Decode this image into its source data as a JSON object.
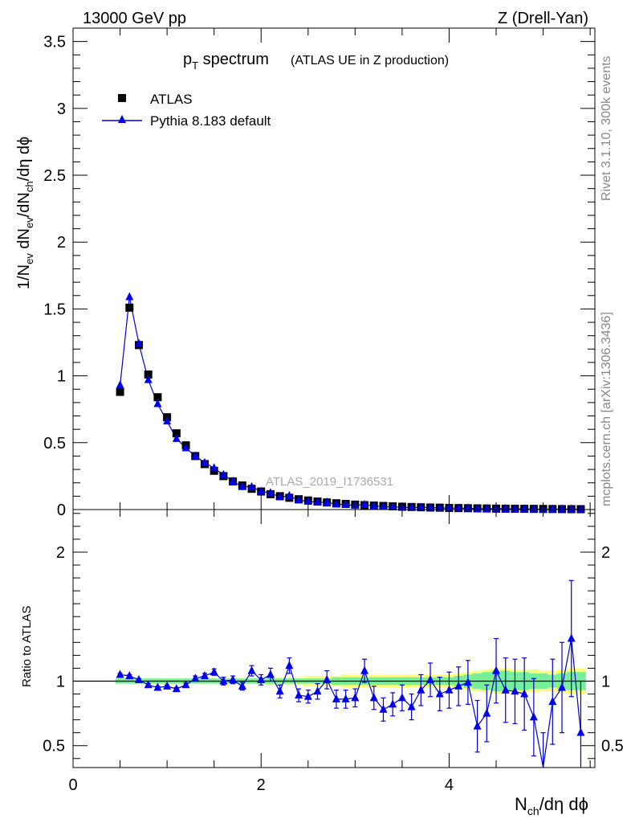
{
  "header": {
    "left": "13000 GeV pp",
    "right": "Z (Drell-Yan)"
  },
  "side_labels": {
    "rivet": "Rivet 3.1.10,  300k events",
    "mcplots": "mcplots.cern.ch [arXiv:1306.3436]"
  },
  "watermark": "ATLAS_2019_I1736531",
  "chart_data": [
    {
      "type": "scatter",
      "title_main": "p",
      "title_sub": "T",
      "title_main2": " spectrum",
      "title_extra": "(ATLAS UE in Z production)",
      "ylabel": {
        "pre": "1/N",
        "sub1": "ev",
        "mid": " dN",
        "sub2": "ev",
        "mid2": "/dN",
        "sub3": "ch",
        "post": "/dη dϕ"
      },
      "xlim": [
        0,
        5.55
      ],
      "ylim": [
        0,
        3.6
      ],
      "yticks": [
        0,
        0.5,
        1,
        1.5,
        2,
        2.5,
        3,
        3.5
      ],
      "yticklabels": [
        "0",
        "0.5",
        "1",
        "1.5",
        "2",
        "2.5",
        "3",
        "3.5"
      ],
      "legend": {
        "position": "top-left",
        "data_label": "ATLAS",
        "mc_label": "Pythia 8.183 default"
      },
      "x": [
        0.5,
        0.6,
        0.7,
        0.8,
        0.9,
        1.0,
        1.1,
        1.2,
        1.3,
        1.4,
        1.5,
        1.6,
        1.7,
        1.8,
        1.9,
        2.0,
        2.1,
        2.2,
        2.3,
        2.4,
        2.5,
        2.6,
        2.7,
        2.8,
        2.9,
        3.0,
        3.1,
        3.2,
        3.3,
        3.4,
        3.5,
        3.6,
        3.7,
        3.8,
        3.9,
        4.0,
        4.1,
        4.2,
        4.3,
        4.4,
        4.5,
        4.6,
        4.7,
        4.8,
        4.9,
        5.0,
        5.1,
        5.2,
        5.3,
        5.4
      ],
      "series": [
        {
          "name": "ATLAS",
          "values": [
            0.88,
            1.51,
            1.23,
            1.01,
            0.84,
            0.69,
            0.57,
            0.48,
            0.4,
            0.34,
            0.29,
            0.25,
            0.21,
            0.18,
            0.155,
            0.135,
            0.115,
            0.1,
            0.088,
            0.077,
            0.068,
            0.06,
            0.053,
            0.047,
            0.042,
            0.037,
            0.033,
            0.03,
            0.027,
            0.024,
            0.021,
            0.019,
            0.017,
            0.015,
            0.014,
            0.012,
            0.011,
            0.01,
            0.009,
            0.008,
            0.007,
            0.0065,
            0.006,
            0.0055,
            0.005,
            0.0045,
            0.004,
            0.0035,
            0.003,
            0.0028
          ]
        },
        {
          "name": "Pythia 8.183 default",
          "values": [
            0.93,
            1.59,
            1.24,
            0.97,
            0.79,
            0.66,
            0.53,
            0.46,
            0.4,
            0.35,
            0.31,
            0.26,
            0.21,
            0.17,
            0.17,
            0.135,
            0.125,
            0.093,
            0.103,
            0.07,
            0.06,
            0.055,
            0.054,
            0.04,
            0.036,
            0.032,
            0.037,
            0.026,
            0.021,
            0.02,
            0.018,
            0.015,
            0.016,
            0.015,
            0.012,
            0.011,
            0.0105,
            0.0098,
            0.006,
            0.006,
            0.0077,
            0.006,
            0.0055,
            0.005,
            0.0036,
            0.002,
            0.0034,
            0.0035,
            0.004,
            0.0017
          ]
        }
      ]
    },
    {
      "type": "scatter",
      "ylabel": "Ratio to ATLAS",
      "xlabel": {
        "pre": "N",
        "sub": "ch",
        "post": "/dη dϕ"
      },
      "xlim": [
        0,
        5.55
      ],
      "ylim": [
        0.33,
        2.33
      ],
      "xticks": [
        0,
        2,
        4
      ],
      "xticklabels": [
        "0",
        "2",
        "4"
      ],
      "yticks": [
        0.5,
        1,
        2
      ],
      "yticklabels": [
        "0.5",
        "1",
        "2"
      ],
      "x": [
        0.5,
        0.6,
        0.7,
        0.8,
        0.9,
        1.0,
        1.1,
        1.2,
        1.3,
        1.4,
        1.5,
        1.6,
        1.7,
        1.8,
        1.9,
        2.0,
        2.1,
        2.2,
        2.3,
        2.4,
        2.5,
        2.6,
        2.7,
        2.8,
        2.9,
        3.0,
        3.1,
        3.2,
        3.3,
        3.4,
        3.5,
        3.6,
        3.7,
        3.8,
        3.9,
        4.0,
        4.1,
        4.2,
        4.3,
        4.4,
        4.5,
        4.6,
        4.7,
        4.8,
        4.9,
        5.0,
        5.1,
        5.2,
        5.3,
        5.4
      ],
      "ratio": [
        1.05,
        1.04,
        1.01,
        0.97,
        0.95,
        0.96,
        0.94,
        0.97,
        1.02,
        1.04,
        1.07,
        1.0,
        1.01,
        0.96,
        1.08,
        1.01,
        1.05,
        0.92,
        1.12,
        0.89,
        0.88,
        0.92,
        1.01,
        0.86,
        0.86,
        0.87,
        1.08,
        0.87,
        0.78,
        0.82,
        0.87,
        0.8,
        0.93,
        1.01,
        0.9,
        0.93,
        0.96,
        0.99,
        0.65,
        0.75,
        1.08,
        0.93,
        0.92,
        0.9,
        0.72,
        0.3,
        0.84,
        0.95,
        1.33,
        0.6
      ],
      "ratio_err": [
        0.01,
        0.01,
        0.01,
        0.01,
        0.01,
        0.01,
        0.01,
        0.015,
        0.02,
        0.02,
        0.025,
        0.03,
        0.03,
        0.03,
        0.04,
        0.04,
        0.05,
        0.05,
        0.06,
        0.05,
        0.05,
        0.06,
        0.07,
        0.07,
        0.07,
        0.07,
        0.09,
        0.09,
        0.09,
        0.09,
        0.1,
        0.1,
        0.12,
        0.13,
        0.13,
        0.14,
        0.15,
        0.17,
        0.2,
        0.22,
        0.25,
        0.25,
        0.25,
        0.28,
        0.3,
        0.3,
        0.33,
        0.35,
        0.45,
        0.4
      ],
      "band_inner": [
        0.02,
        0.02,
        0.02,
        0.02,
        0.02,
        0.02,
        0.02,
        0.02,
        0.02,
        0.02,
        0.02,
        0.02,
        0.02,
        0.02,
        0.02,
        0.02,
        0.02,
        0.02,
        0.02,
        0.02,
        0.02,
        0.02,
        0.02,
        0.03,
        0.03,
        0.03,
        0.03,
        0.03,
        0.03,
        0.03,
        0.03,
        0.03,
        0.03,
        0.03,
        0.03,
        0.03,
        0.04,
        0.05,
        0.06,
        0.07,
        0.08,
        0.08,
        0.07,
        0.07,
        0.06,
        0.06,
        0.05,
        0.06,
        0.07,
        0.07
      ],
      "band_outer": [
        0.02,
        0.02,
        0.02,
        0.02,
        0.02,
        0.02,
        0.02,
        0.02,
        0.02,
        0.02,
        0.02,
        0.02,
        0.02,
        0.02,
        0.02,
        0.02,
        0.03,
        0.03,
        0.03,
        0.03,
        0.04,
        0.04,
        0.04,
        0.04,
        0.05,
        0.05,
        0.05,
        0.05,
        0.05,
        0.05,
        0.05,
        0.05,
        0.05,
        0.05,
        0.05,
        0.05,
        0.06,
        0.07,
        0.08,
        0.09,
        0.1,
        0.1,
        0.09,
        0.09,
        0.09,
        0.08,
        0.08,
        0.09,
        0.1,
        0.1
      ]
    }
  ]
}
